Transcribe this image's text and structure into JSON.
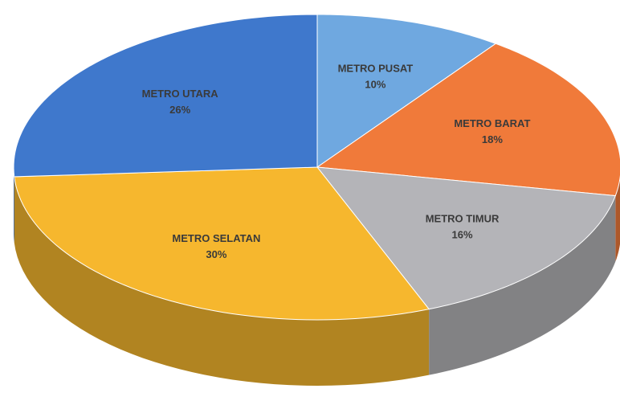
{
  "chart_data": {
    "type": "pie",
    "categories": [
      "METRO PUSAT",
      "METRO BARAT",
      "METRO TIMUR",
      "METRO SELATAN",
      "METRO UTARA"
    ],
    "values": [
      10,
      18,
      16,
      30,
      26
    ],
    "value_labels": [
      "10%",
      "18%",
      "16%",
      "30%",
      "26%"
    ],
    "colors": [
      "#6fa8e0",
      "#f07a3a",
      "#b4b4b8",
      "#f6b72e",
      "#3f78cc"
    ]
  }
}
